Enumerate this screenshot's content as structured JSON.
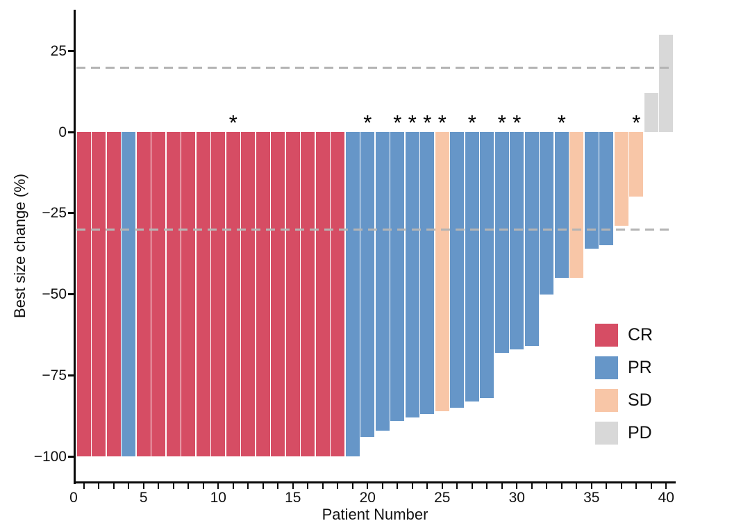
{
  "chart_data": {
    "type": "bar",
    "chart_kind": "waterfall-best-response",
    "title": "",
    "xlabel": "Patient Number",
    "ylabel": "Best size change (%)",
    "ylim": [
      -100,
      35
    ],
    "xlim": [
      0,
      42
    ],
    "grid": false,
    "legend_position": "inside-right",
    "y_ticks": [
      25,
      0,
      -25,
      -50,
      -75,
      -100
    ],
    "y_tick_labels": [
      "25",
      "0",
      "−25",
      "−50",
      "−75",
      "−100"
    ],
    "x_tick_values": [
      0,
      5,
      10,
      15,
      20,
      25,
      30,
      35,
      40
    ],
    "x_tick_labels": [
      "0",
      "5",
      "10",
      "15",
      "20",
      "25",
      "30",
      "35",
      "40"
    ],
    "reference_lines": [
      20,
      -30
    ],
    "reference_line_color": "#b4b4b4",
    "annotation_symbol": "*",
    "legend": [
      {
        "label": "CR",
        "color": "#D64D64"
      },
      {
        "label": "PR",
        "color": "#6696C8"
      },
      {
        "label": "SD",
        "color": "#F8C6A7"
      },
      {
        "label": "PD",
        "color": "#D8D8D8"
      }
    ],
    "patients": [
      {
        "patient": 1,
        "change": -100,
        "response": "CR",
        "star": false
      },
      {
        "patient": 2,
        "change": -100,
        "response": "CR",
        "star": false
      },
      {
        "patient": 3,
        "change": -100,
        "response": "CR",
        "star": false
      },
      {
        "patient": 4,
        "change": -100,
        "response": "PR",
        "star": false
      },
      {
        "patient": 5,
        "change": -100,
        "response": "CR",
        "star": false
      },
      {
        "patient": 6,
        "change": -100,
        "response": "CR",
        "star": false
      },
      {
        "patient": 7,
        "change": -100,
        "response": "CR",
        "star": false
      },
      {
        "patient": 8,
        "change": -100,
        "response": "CR",
        "star": false
      },
      {
        "patient": 9,
        "change": -100,
        "response": "CR",
        "star": false
      },
      {
        "patient": 10,
        "change": -100,
        "response": "CR",
        "star": false
      },
      {
        "patient": 11,
        "change": -100,
        "response": "CR",
        "star": true
      },
      {
        "patient": 12,
        "change": -100,
        "response": "CR",
        "star": false
      },
      {
        "patient": 13,
        "change": -100,
        "response": "CR",
        "star": false
      },
      {
        "patient": 14,
        "change": -100,
        "response": "CR",
        "star": false
      },
      {
        "patient": 15,
        "change": -100,
        "response": "CR",
        "star": false
      },
      {
        "patient": 16,
        "change": -100,
        "response": "CR",
        "star": false
      },
      {
        "patient": 17,
        "change": -100,
        "response": "CR",
        "star": false
      },
      {
        "patient": 18,
        "change": -100,
        "response": "CR",
        "star": false
      },
      {
        "patient": 19,
        "change": -100,
        "response": "PR",
        "star": false
      },
      {
        "patient": 20,
        "change": -94,
        "response": "PR",
        "star": true
      },
      {
        "patient": 21,
        "change": -92,
        "response": "PR",
        "star": false
      },
      {
        "patient": 22,
        "change": -89,
        "response": "PR",
        "star": true
      },
      {
        "patient": 23,
        "change": -88,
        "response": "PR",
        "star": true
      },
      {
        "patient": 24,
        "change": -87,
        "response": "PR",
        "star": true
      },
      {
        "patient": 25,
        "change": -86,
        "response": "SD",
        "star": true
      },
      {
        "patient": 26,
        "change": -85,
        "response": "PR",
        "star": false
      },
      {
        "patient": 27,
        "change": -83,
        "response": "PR",
        "star": true
      },
      {
        "patient": 28,
        "change": -82,
        "response": "PR",
        "star": false
      },
      {
        "patient": 29,
        "change": -68,
        "response": "PR",
        "star": true
      },
      {
        "patient": 30,
        "change": -67,
        "response": "PR",
        "star": true
      },
      {
        "patient": 31,
        "change": -66,
        "response": "PR",
        "star": false
      },
      {
        "patient": 32,
        "change": -50,
        "response": "PR",
        "star": false
      },
      {
        "patient": 33,
        "change": -45,
        "response": "PR",
        "star": true
      },
      {
        "patient": 34,
        "change": -45,
        "response": "SD",
        "star": false
      },
      {
        "patient": 35,
        "change": -36,
        "response": "PR",
        "star": false
      },
      {
        "patient": 36,
        "change": -35,
        "response": "PR",
        "star": false
      },
      {
        "patient": 37,
        "change": -29,
        "response": "SD",
        "star": false
      },
      {
        "patient": 38,
        "change": -20,
        "response": "SD",
        "star": true
      },
      {
        "patient": 39,
        "change": 12,
        "response": "PD",
        "star": false
      },
      {
        "patient": 40,
        "change": 30,
        "response": "PD",
        "star": false
      }
    ]
  }
}
